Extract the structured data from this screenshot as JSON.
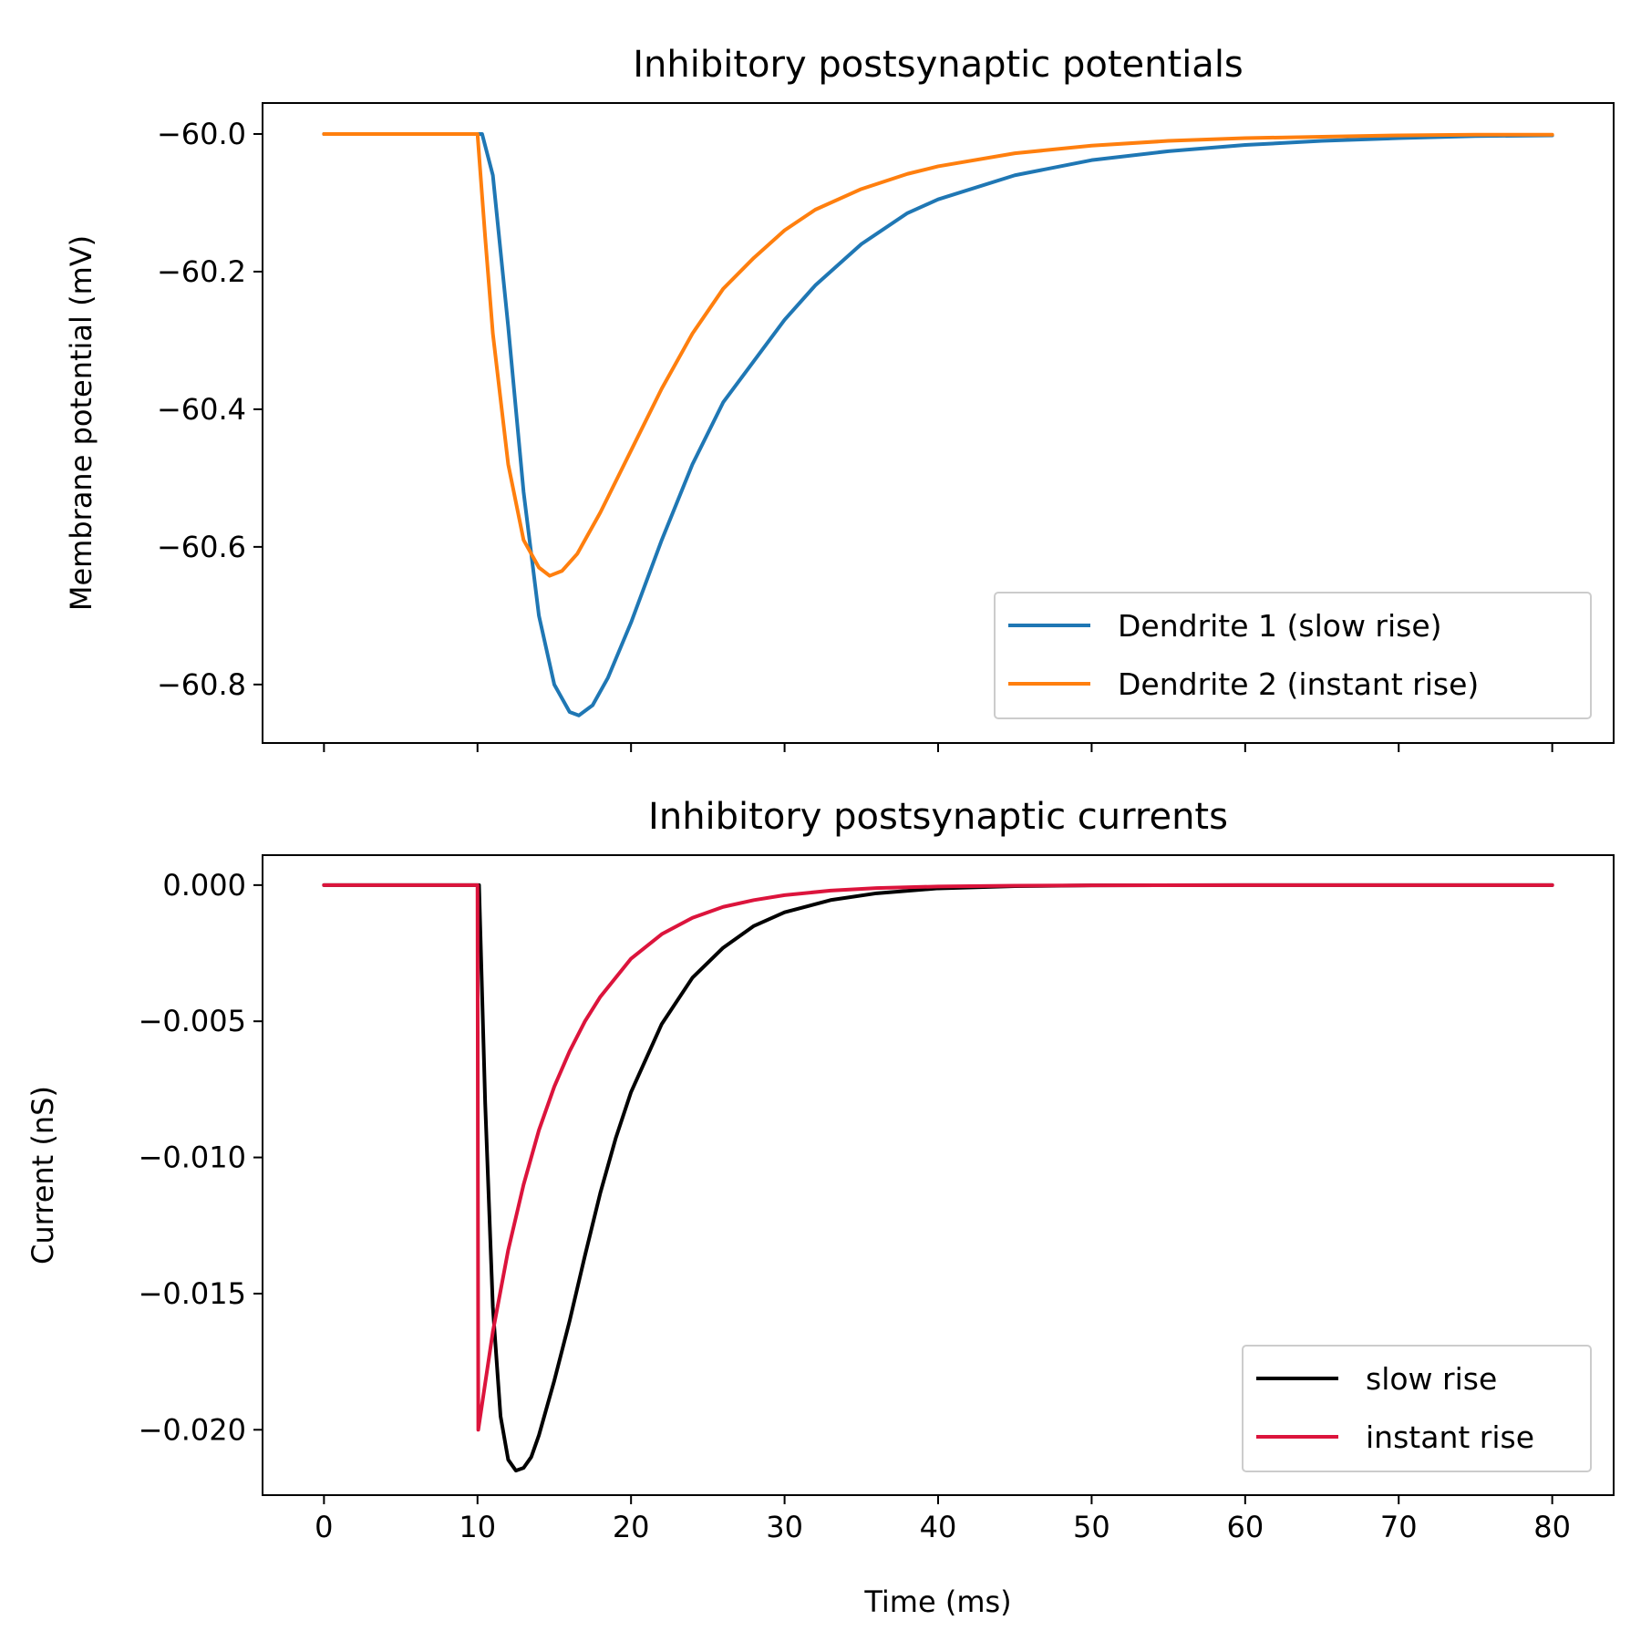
{
  "colors": {
    "dendrite1": "#1f77b4",
    "dendrite2": "#ff7f0e",
    "slow": "#000000",
    "instant": "#dc143c"
  },
  "chart_data": [
    {
      "type": "line",
      "title": "Inhibitory postsynaptic potentials",
      "xlabel": "",
      "ylabel": "Membrane potential (mV)",
      "xlim": [
        -4,
        84
      ],
      "ylim": [
        -60.885,
        -59.955
      ],
      "xticks": [
        0,
        10,
        20,
        30,
        40,
        50,
        60,
        70,
        80
      ],
      "xtick_labels_shown": false,
      "yticks": [
        -60.0,
        -60.2,
        -60.4,
        -60.6,
        -60.8
      ],
      "ytick_labels": [
        "−60.0",
        "−60.2",
        "−60.4",
        "−60.6",
        "−60.8"
      ],
      "legend_position": "lower-right",
      "grid": false,
      "series": [
        {
          "name": "Dendrite 1 (slow rise)",
          "color_key": "dendrite1",
          "x": [
            0,
            10,
            10.3,
            11,
            12,
            13,
            14,
            15,
            16,
            16.6,
            17.5,
            18.5,
            20,
            22,
            24,
            26,
            28,
            30,
            32,
            35,
            38,
            40,
            45,
            50,
            55,
            60,
            65,
            70,
            75,
            80
          ],
          "y": [
            -60.0,
            -60.0,
            -60.0,
            -60.06,
            -60.28,
            -60.52,
            -60.7,
            -60.8,
            -60.84,
            -60.845,
            -60.83,
            -60.79,
            -60.71,
            -60.59,
            -60.48,
            -60.39,
            -60.33,
            -60.27,
            -60.22,
            -60.16,
            -60.115,
            -60.095,
            -60.06,
            -60.038,
            -60.025,
            -60.016,
            -60.01,
            -60.006,
            -60.003,
            -60.002
          ]
        },
        {
          "name": "Dendrite 2 (instant rise)",
          "color_key": "dendrite2",
          "x": [
            0,
            10,
            10.5,
            11,
            12,
            13,
            14,
            14.7,
            15.5,
            16.5,
            18,
            20,
            22,
            24,
            26,
            28,
            30,
            32,
            35,
            38,
            40,
            45,
            50,
            55,
            60,
            65,
            70,
            75,
            80
          ],
          "y": [
            -60.0,
            -60.0,
            -60.15,
            -60.29,
            -60.48,
            -60.59,
            -60.63,
            -60.642,
            -60.635,
            -60.61,
            -60.55,
            -60.46,
            -60.37,
            -60.29,
            -60.225,
            -60.18,
            -60.14,
            -60.11,
            -60.08,
            -60.058,
            -60.047,
            -60.028,
            -60.017,
            -60.01,
            -60.006,
            -60.004,
            -60.002,
            -60.001,
            -60.001
          ]
        }
      ]
    },
    {
      "type": "line",
      "title": "Inhibitory postsynaptic currents",
      "xlabel": "Time (ms)",
      "ylabel": "Current (nS)",
      "xlim": [
        -4,
        84
      ],
      "ylim": [
        -0.0224,
        0.0011
      ],
      "xticks": [
        0,
        10,
        20,
        30,
        40,
        50,
        60,
        70,
        80
      ],
      "xtick_labels": [
        "0",
        "10",
        "20",
        "30",
        "40",
        "50",
        "60",
        "70",
        "80"
      ],
      "yticks": [
        0.0,
        -0.005,
        -0.01,
        -0.015,
        -0.02
      ],
      "ytick_labels": [
        "0.000",
        "−0.005",
        "−0.010",
        "−0.015",
        "−0.020"
      ],
      "legend_position": "lower-right",
      "grid": false,
      "series": [
        {
          "name": "slow rise",
          "color_key": "slow",
          "x": [
            0,
            10,
            10.1,
            10.5,
            11,
            11.5,
            12,
            12.5,
            13,
            13.5,
            14,
            15,
            16,
            17,
            18,
            19,
            20,
            22,
            24,
            26,
            28,
            30,
            33,
            36,
            40,
            45,
            50,
            60,
            70,
            80
          ],
          "y": [
            0.0,
            0.0,
            0.0,
            -0.008,
            -0.0155,
            -0.0195,
            -0.0211,
            -0.0215,
            -0.0214,
            -0.021,
            -0.0202,
            -0.0182,
            -0.016,
            -0.0136,
            -0.0113,
            -0.0093,
            -0.0076,
            -0.0051,
            -0.0034,
            -0.0023,
            -0.0015,
            -0.001,
            -0.00055,
            -0.0003,
            -0.00012,
            -4e-05,
            -1e-05,
            0.0,
            0.0,
            0.0
          ]
        },
        {
          "name": "instant rise",
          "color_key": "instant",
          "x": [
            0,
            10,
            10.05,
            11,
            12,
            13,
            14,
            15,
            16,
            17,
            18,
            20,
            22,
            24,
            26,
            28,
            30,
            33,
            36,
            40,
            45,
            50,
            60,
            70,
            80
          ],
          "y": [
            0.0,
            0.0,
            -0.02,
            -0.0164,
            -0.0134,
            -0.011,
            -0.009,
            -0.0074,
            -0.0061,
            -0.005,
            -0.0041,
            -0.0027,
            -0.0018,
            -0.0012,
            -0.0008,
            -0.00055,
            -0.00037,
            -0.0002,
            -0.00011,
            -5e-05,
            -2e-05,
            -1e-05,
            0.0,
            0.0,
            0.0
          ]
        }
      ]
    }
  ]
}
